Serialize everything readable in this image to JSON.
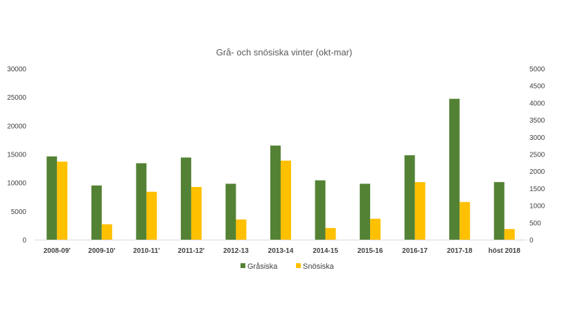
{
  "chart_data": {
    "type": "bar",
    "title": "Grå- och snösiska vinter (okt-mar)",
    "xlabel": "",
    "ylabel": "",
    "categories": [
      "2008-09'",
      "2009-10'",
      "2010-11'",
      "2011-12'",
      "2012-13",
      "2013-14",
      "2014-15",
      "2015-16",
      "2016-17",
      "2017-18",
      "höst 2018"
    ],
    "series": [
      {
        "name": "Gråsiska",
        "axis": "left",
        "color": "#548235",
        "values": [
          14600,
          9500,
          13400,
          14400,
          9800,
          16500,
          10400,
          9800,
          14800,
          24700,
          10100
        ]
      },
      {
        "name": "Snösiska",
        "axis": "right",
        "color": "#FFC000",
        "values": [
          2280,
          450,
          1400,
          1540,
          590,
          2310,
          340,
          610,
          1680,
          1100,
          310
        ]
      }
    ],
    "ylim_left": [
      0,
      30000
    ],
    "yticks_left": [
      "0",
      "5000",
      "10000",
      "15000",
      "20000",
      "25000",
      "30000"
    ],
    "ylim_right": [
      0,
      5000
    ],
    "yticks_right": [
      "0",
      "500",
      "1000",
      "1500",
      "2000",
      "2500",
      "3000",
      "3500",
      "4000",
      "4500",
      "5000"
    ],
    "grid": false,
    "legend_position": "bottom"
  }
}
